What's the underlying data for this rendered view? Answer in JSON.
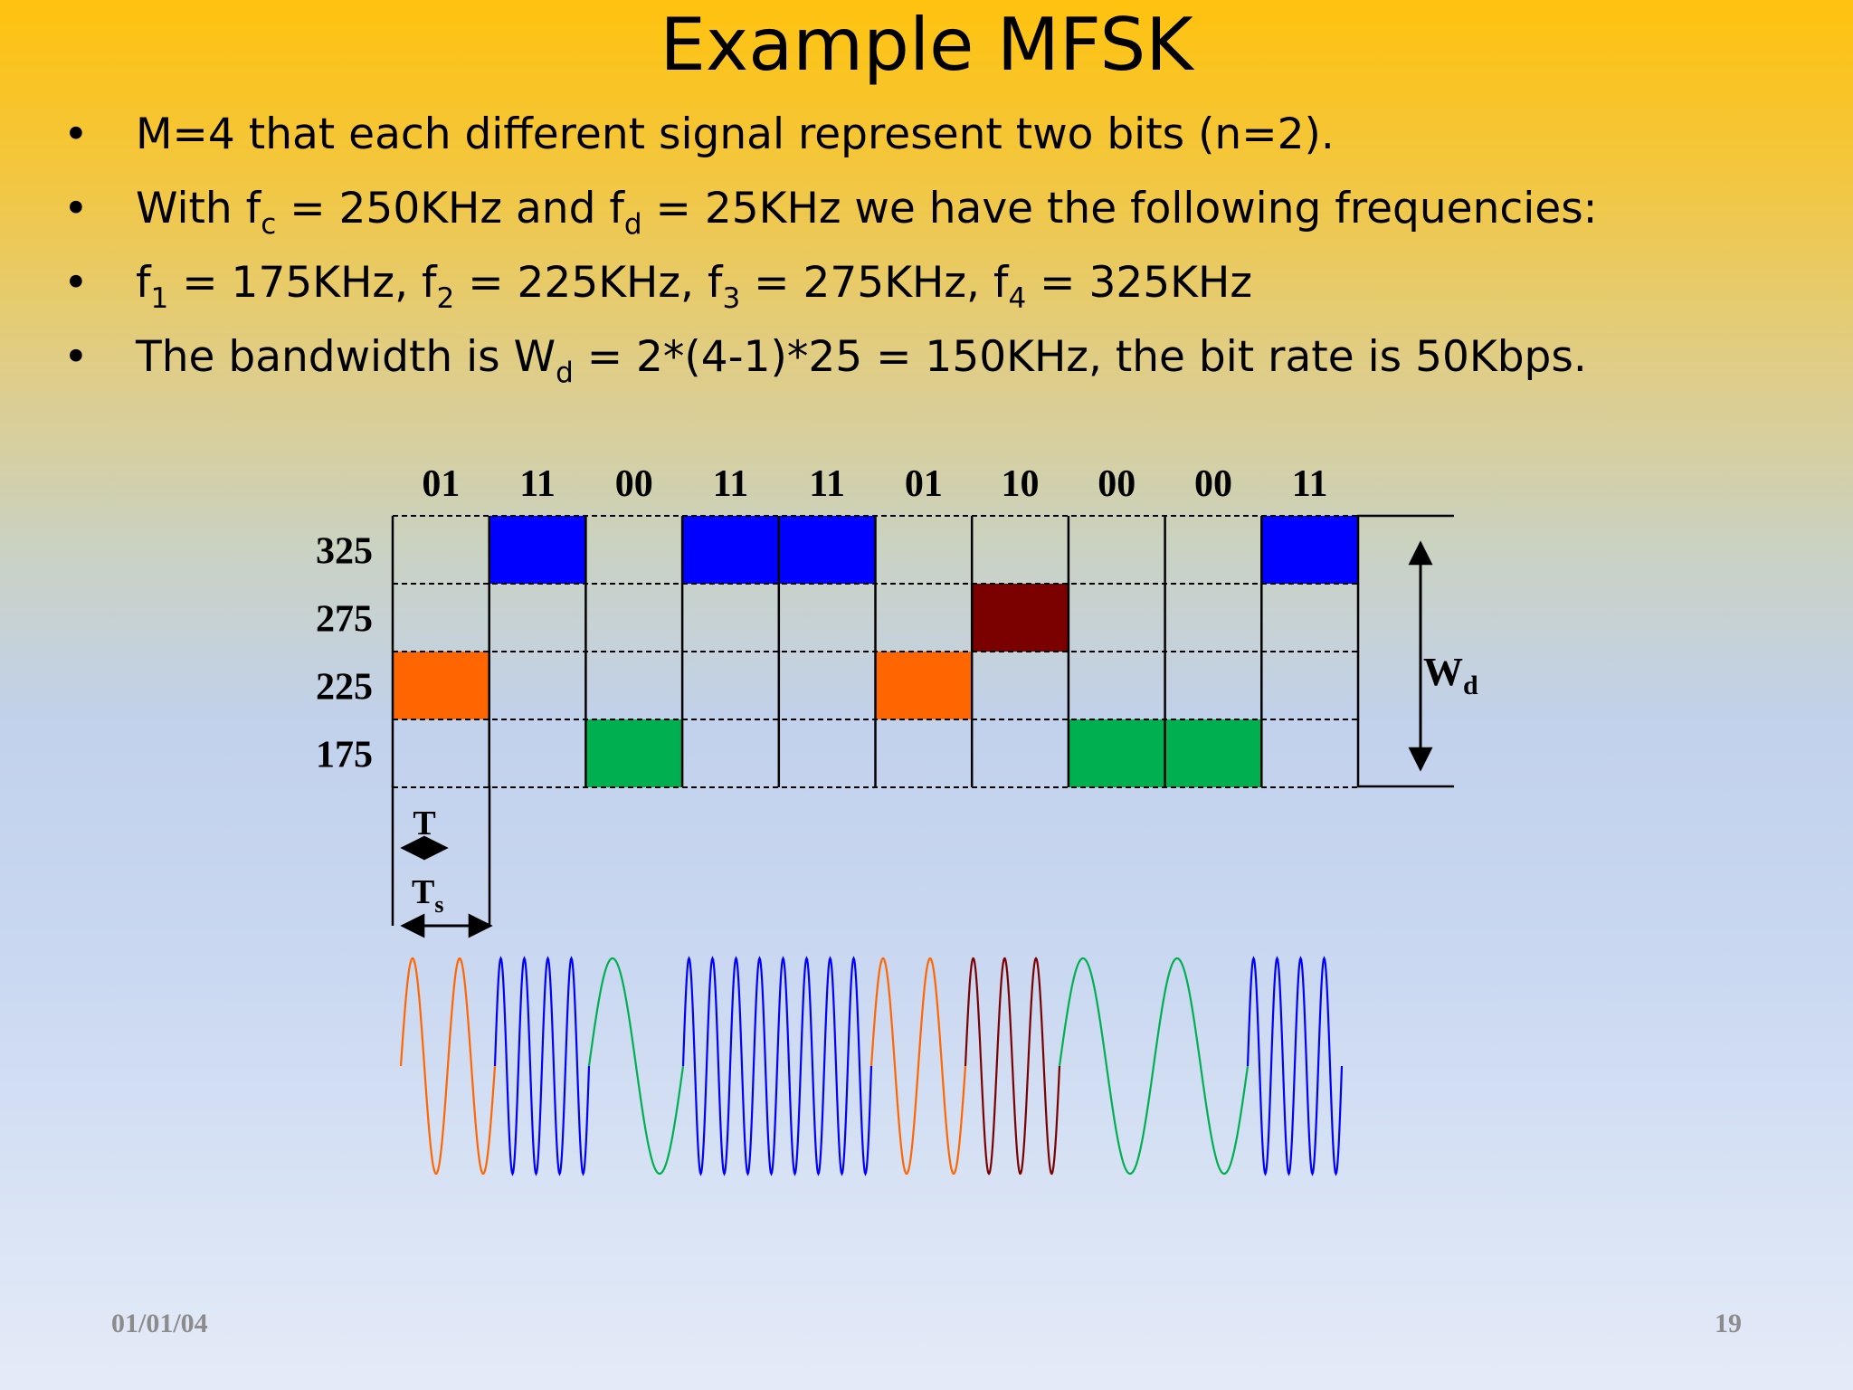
{
  "slide": {
    "title": "Example MFSK",
    "bullets": [
      [
        "M=4 that each different signal represent two bits (n=2)."
      ],
      [
        "With f",
        "c",
        " = 250KHz and f",
        "d",
        " = 25KHz we have the following frequencies:"
      ],
      [
        "f",
        "1",
        " = 175KHz, f",
        "2",
        " = 225KHz, f",
        "3",
        " = 275KHz, f",
        "4",
        " = 325KHz"
      ],
      [
        "The bandwidth is W",
        "d",
        " = 2*(4-1)*25 = 150KHz, the bit rate is 50Kbps."
      ]
    ],
    "bullet_glyph": "•",
    "footer": {
      "date": "01/01/04",
      "page": "19"
    }
  },
  "diagram": {
    "symbols": [
      "01",
      "11",
      "00",
      "11",
      "11",
      "01",
      "10",
      "00",
      "00",
      "11"
    ],
    "frequency_levels": [
      "325",
      "275",
      "225",
      "175"
    ],
    "symbol_frequencies": [
      225,
      325,
      175,
      325,
      325,
      225,
      275,
      175,
      175,
      325
    ],
    "colors": {
      "01": "#ff6600",
      "11": "#0000ff",
      "00": "#00b050",
      "10": "#7b0000"
    },
    "bandwidth_label": {
      "base": "W",
      "sub": "d"
    },
    "bit_time_label": "T",
    "symbol_time_label": {
      "base": "T",
      "sub": "s"
    },
    "waveform_cycles_per_symbol": {
      "175": 1,
      "225": 2,
      "275": 3,
      "325": 4
    }
  }
}
